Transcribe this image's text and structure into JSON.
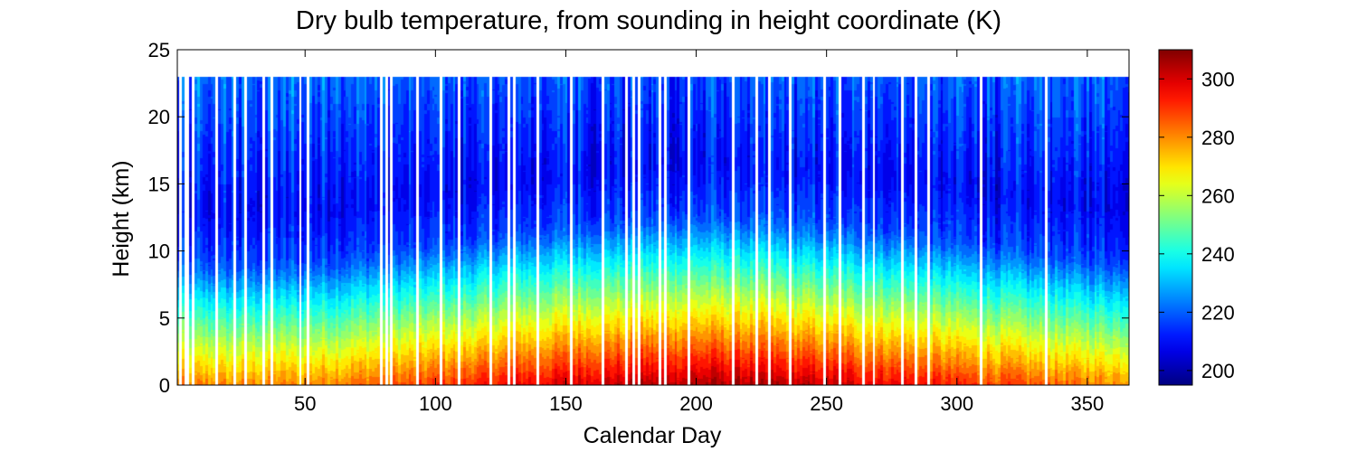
{
  "chart_data": {
    "type": "heatmap",
    "title": "Dry bulb temperature, from sounding in height coordinate  (K)",
    "xlabel": "Calendar Day",
    "ylabel": "Height (km)",
    "xlim": [
      1,
      366
    ],
    "ylim": [
      0,
      25
    ],
    "x_ticks": [
      50,
      100,
      150,
      200,
      250,
      300,
      350
    ],
    "y_ticks": [
      0,
      5,
      10,
      15,
      20,
      25
    ],
    "data_top_height_km": 23,
    "colorbar": {
      "range": [
        195,
        310
      ],
      "ticks": [
        200,
        220,
        240,
        260,
        280,
        300
      ],
      "colormap": "jet"
    },
    "series_description_values": {
      "surface_temperature_min_day_1": 280,
      "surface_temperature_max_day_200": 305,
      "tropopause_height_winter_km": 9,
      "tropopause_height_summer_km": 12.5,
      "minimum_temperature_k": 197
    },
    "missing_days": [
      2,
      4,
      5,
      7,
      16,
      23,
      27,
      34,
      37,
      48,
      51,
      79,
      81,
      83,
      93,
      102,
      109,
      121,
      128,
      130,
      139,
      152,
      164,
      173,
      176,
      178,
      186,
      188,
      197,
      214,
      223,
      228,
      236,
      249,
      255,
      264,
      268,
      279,
      284,
      289,
      309,
      334
    ]
  }
}
